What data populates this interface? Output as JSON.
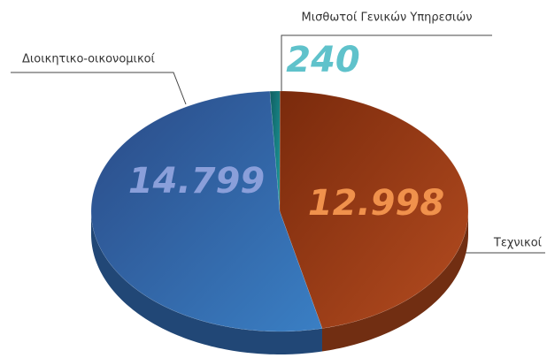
{
  "chart_data": {
    "type": "pie",
    "categories": [
      "Μισθωτοί Γενικών Υπηρεσιών",
      "Τεχνικοί",
      "Διοικητικο-οικονομικοί"
    ],
    "values": [
      240,
      12998,
      14799
    ],
    "value_labels": [
      "240",
      "12.998",
      "14.799"
    ],
    "colors": [
      "#157a7c",
      "#a2411a",
      "#2f66a8"
    ],
    "label_colors": [
      "#5fc2cb",
      "#f0914c",
      "#8a9fda"
    ]
  }
}
